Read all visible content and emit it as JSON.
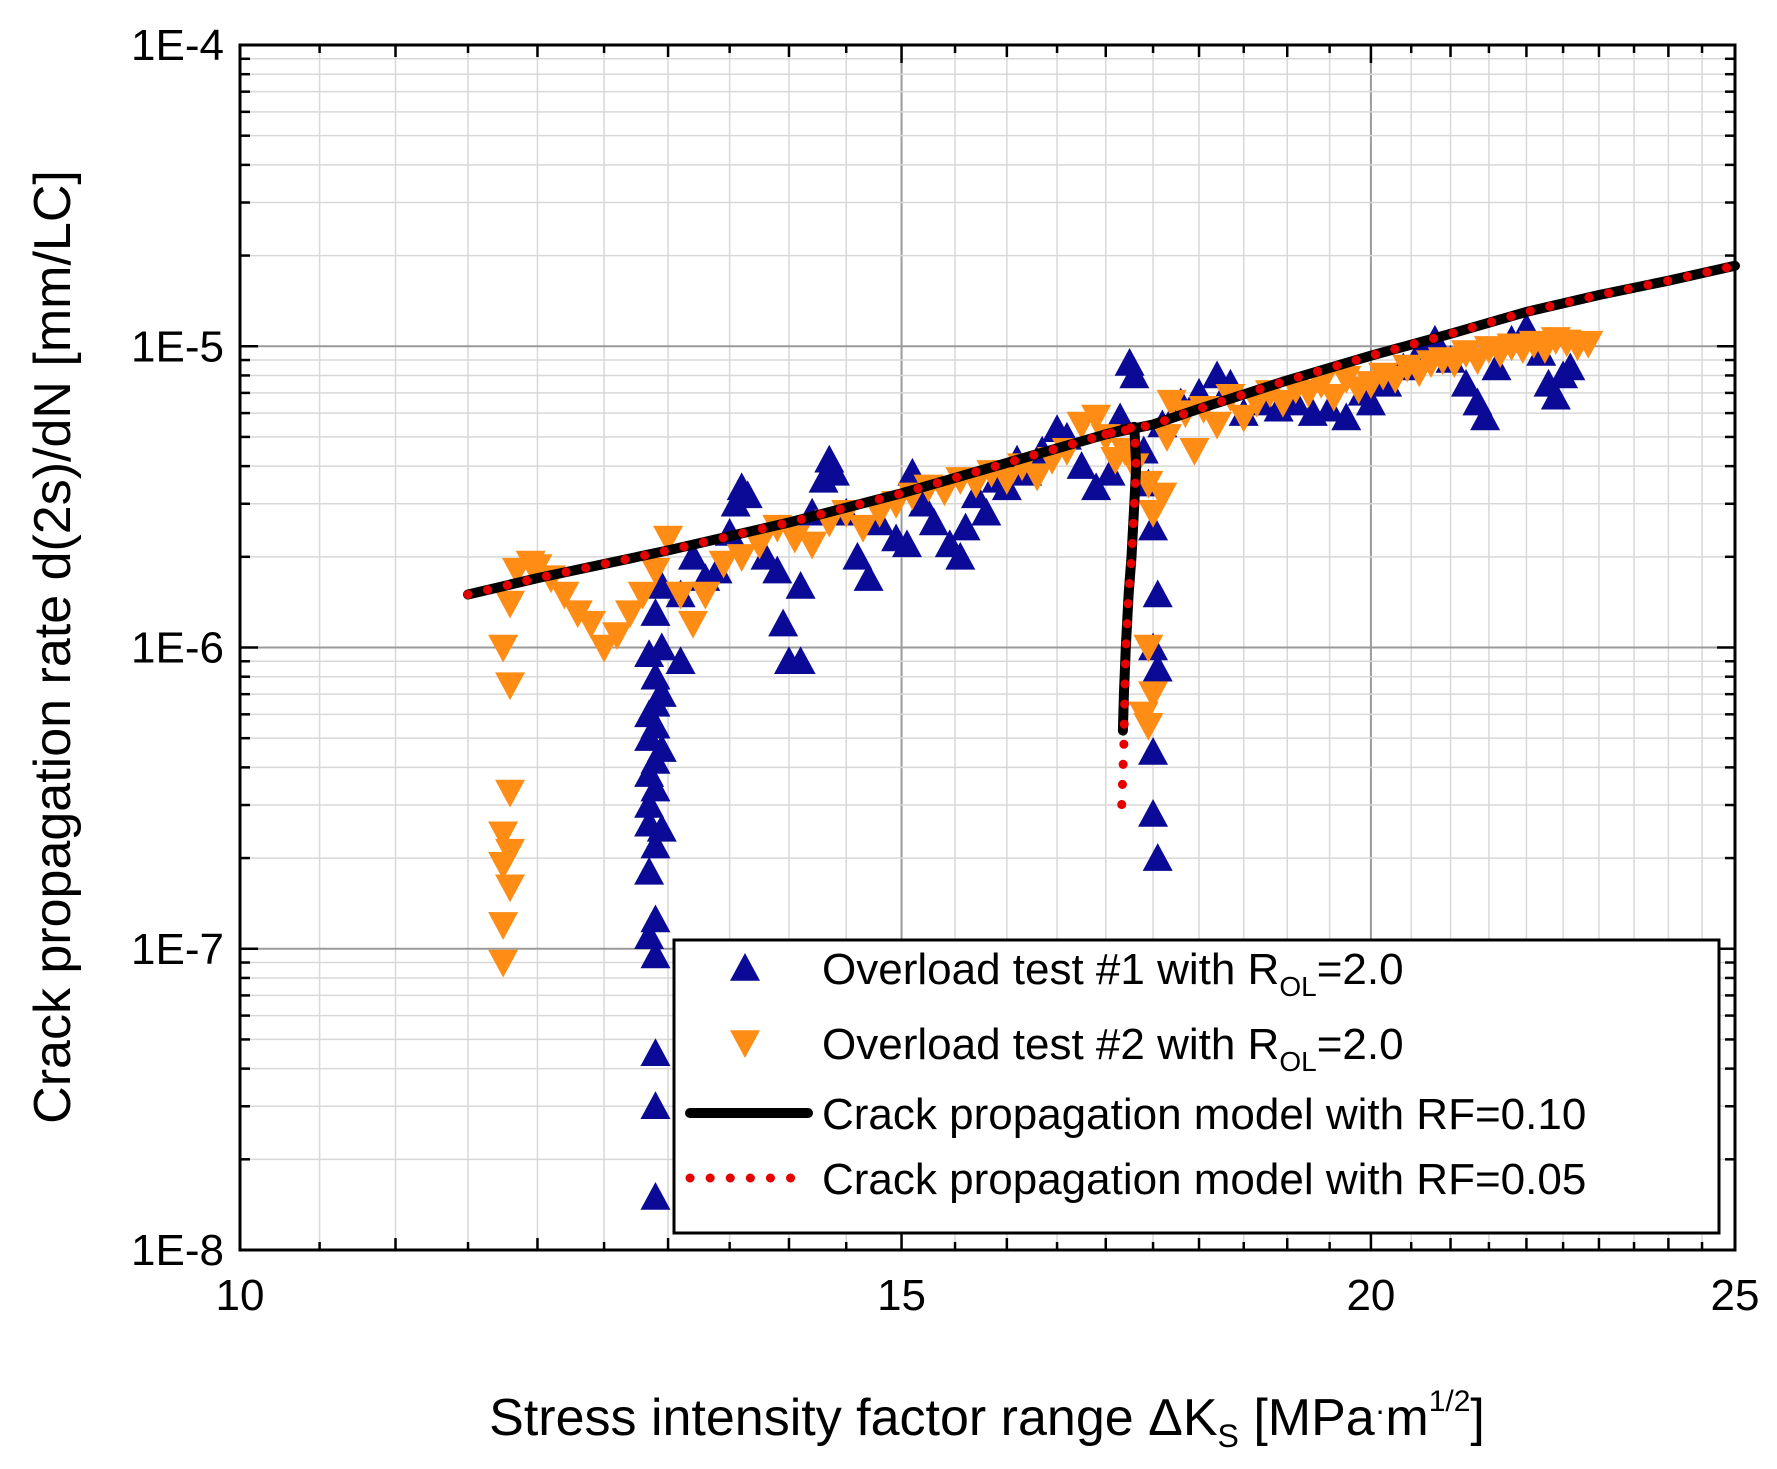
{
  "chart_data": {
    "type": "scatter",
    "x_scale": "log",
    "y_scale": "log",
    "xlabel": {
      "main": "Stress intensity factor range ΔK",
      "sub": "S",
      "unit_open": " [MPa",
      "dot": "·",
      "m": "m",
      "sup": "1/2",
      "close": "]"
    },
    "ylabel": "Crack propagation rate d(2s)/dN [mm/LC]",
    "xlim": [
      10,
      25
    ],
    "ylim": [
      1e-08,
      0.0001
    ],
    "x_ticks": [
      10,
      15,
      20,
      25
    ],
    "x_tick_labels": [
      "10",
      "15",
      "20",
      "25"
    ],
    "y_ticks": [
      1e-08,
      1e-07,
      1e-06,
      1e-05,
      0.0001
    ],
    "y_tick_labels": [
      "1E-8",
      "1E-7",
      "1E-6",
      "1E-5",
      "1E-4"
    ],
    "grid": true,
    "legend_position": "bottom-right",
    "legend": [
      {
        "key": "t1",
        "pre": "Overload test #1 with R",
        "sub": "OL",
        "post": "=2.0"
      },
      {
        "key": "t2",
        "pre": "Overload test #2 with R",
        "sub": "OL",
        "post": "=2.0"
      },
      {
        "key": "m1",
        "pre": "Crack propagation model with RF=0.10",
        "sub": "",
        "post": ""
      },
      {
        "key": "m2",
        "pre": "Crack propagation model with RF=0.05",
        "sub": "",
        "post": ""
      }
    ],
    "series": [
      {
        "key": "t1",
        "name": "Overload test #1 with R_OL=2.0",
        "marker": "triangle-up",
        "color": "#0a0a96",
        "points": [
          [
            12.9,
            1.5e-08
          ],
          [
            12.9,
            3e-08
          ],
          [
            12.9,
            4.5e-08
          ],
          [
            12.9,
            9.5e-08
          ],
          [
            12.85,
            1.1e-07
          ],
          [
            12.9,
            1.25e-07
          ],
          [
            12.85,
            1.8e-07
          ],
          [
            12.9,
            2.2e-07
          ],
          [
            12.85,
            2.6e-07
          ],
          [
            12.95,
            2.5e-07
          ],
          [
            12.85,
            3e-07
          ],
          [
            12.9,
            3.4e-07
          ],
          [
            12.85,
            3.8e-07
          ],
          [
            12.9,
            4.2e-07
          ],
          [
            12.95,
            4.6e-07
          ],
          [
            12.85,
            5e-07
          ],
          [
            12.9,
            5.5e-07
          ],
          [
            12.85,
            6e-07
          ],
          [
            12.9,
            6.5e-07
          ],
          [
            12.95,
            7e-07
          ],
          [
            12.9,
            8e-07
          ],
          [
            12.85,
            9.5e-07
          ],
          [
            12.95,
            1e-06
          ],
          [
            12.9,
            1.3e-06
          ],
          [
            12.95,
            1.6e-06
          ],
          [
            13.1,
            1.5e-06
          ],
          [
            13.2,
            2e-06
          ],
          [
            13.3,
            1.7e-06
          ],
          [
            13.1,
            9e-07
          ],
          [
            13.4,
            1.8e-06
          ],
          [
            13.5,
            2.4e-06
          ],
          [
            13.55,
            3e-06
          ],
          [
            13.6,
            3.4e-06
          ],
          [
            13.65,
            3.2e-06
          ],
          [
            13.8,
            2e-06
          ],
          [
            13.9,
            1.8e-06
          ],
          [
            13.95,
            1.2e-06
          ],
          [
            14.0,
            9e-07
          ],
          [
            14.1,
            9e-07
          ],
          [
            14.1,
            1.6e-06
          ],
          [
            14.2,
            2.8e-06
          ],
          [
            14.3,
            3.6e-06
          ],
          [
            14.35,
            4.2e-06
          ],
          [
            14.4,
            3.8e-06
          ],
          [
            14.5,
            2.8e-06
          ],
          [
            14.6,
            2e-06
          ],
          [
            14.7,
            1.7e-06
          ],
          [
            14.8,
            2.6e-06
          ],
          [
            14.95,
            2.3e-06
          ],
          [
            15.05,
            2.2e-06
          ],
          [
            15.1,
            3.8e-06
          ],
          [
            15.2,
            3e-06
          ],
          [
            15.3,
            2.6e-06
          ],
          [
            15.45,
            2.2e-06
          ],
          [
            15.55,
            2e-06
          ],
          [
            15.6,
            2.5e-06
          ],
          [
            15.7,
            3.2e-06
          ],
          [
            15.8,
            2.8e-06
          ],
          [
            15.9,
            3.6e-06
          ],
          [
            16.0,
            3.4e-06
          ],
          [
            16.1,
            4.2e-06
          ],
          [
            16.2,
            3.8e-06
          ],
          [
            16.35,
            4.5e-06
          ],
          [
            16.5,
            5.3e-06
          ],
          [
            16.6,
            5e-06
          ],
          [
            16.75,
            4e-06
          ],
          [
            16.9,
            3.4e-06
          ],
          [
            17.05,
            3.8e-06
          ],
          [
            17.15,
            5.8e-06
          ],
          [
            17.25,
            8.8e-06
          ],
          [
            17.3,
            8e-06
          ],
          [
            17.4,
            4.5e-06
          ],
          [
            17.45,
            3.5e-06
          ],
          [
            17.5,
            2.5e-06
          ],
          [
            17.55,
            1.5e-06
          ],
          [
            17.5,
            1e-06
          ],
          [
            17.55,
            8.5e-07
          ],
          [
            17.5,
            4.5e-07
          ],
          [
            17.5,
            2.8e-07
          ],
          [
            17.55,
            2e-07
          ],
          [
            17.6,
            5.5e-06
          ],
          [
            17.8,
            6.5e-06
          ],
          [
            18.0,
            7e-06
          ],
          [
            18.2,
            8e-06
          ],
          [
            18.35,
            7.5e-06
          ],
          [
            18.5,
            6e-06
          ],
          [
            18.7,
            6.5e-06
          ],
          [
            18.9,
            6.2e-06
          ],
          [
            19.1,
            6.5e-06
          ],
          [
            19.3,
            6e-06
          ],
          [
            19.5,
            6.2e-06
          ],
          [
            19.7,
            5.8e-06
          ],
          [
            19.9,
            7e-06
          ],
          [
            20.0,
            6.5e-06
          ],
          [
            20.2,
            7.5e-06
          ],
          [
            20.4,
            8.5e-06
          ],
          [
            20.6,
            9.5e-06
          ],
          [
            20.8,
            1.05e-05
          ],
          [
            21.0,
            9e-06
          ],
          [
            21.2,
            7.5e-06
          ],
          [
            21.35,
            6.5e-06
          ],
          [
            21.45,
            5.8e-06
          ],
          [
            21.6,
            8.5e-06
          ],
          [
            21.8,
            1.05e-05
          ],
          [
            22.0,
            1.15e-05
          ],
          [
            22.2,
            9.5e-06
          ],
          [
            22.3,
            7.5e-06
          ],
          [
            22.4,
            6.8e-06
          ],
          [
            22.5,
            8e-06
          ],
          [
            22.6,
            8.5e-06
          ]
        ]
      },
      {
        "key": "t2",
        "name": "Overload test #2 with R_OL=2.0",
        "marker": "triangle-down",
        "color": "#ff8c14",
        "points": [
          [
            11.75,
            9e-08
          ],
          [
            11.75,
            1.2e-07
          ],
          [
            11.8,
            1.6e-07
          ],
          [
            11.75,
            1.9e-07
          ],
          [
            11.8,
            2.1e-07
          ],
          [
            11.75,
            2.4e-07
          ],
          [
            11.8,
            3.3e-07
          ],
          [
            11.8,
            7.5e-07
          ],
          [
            11.75,
            1e-06
          ],
          [
            11.8,
            1.4e-06
          ],
          [
            11.85,
            1.8e-06
          ],
          [
            11.95,
            1.9e-06
          ],
          [
            12.0,
            1.85e-06
          ],
          [
            12.1,
            1.7e-06
          ],
          [
            12.2,
            1.5e-06
          ],
          [
            12.3,
            1.3e-06
          ],
          [
            12.4,
            1.2e-06
          ],
          [
            12.5,
            1e-06
          ],
          [
            12.6,
            1.1e-06
          ],
          [
            12.7,
            1.3e-06
          ],
          [
            12.8,
            1.5e-06
          ],
          [
            12.9,
            1.8e-06
          ],
          [
            13.0,
            2.3e-06
          ],
          [
            13.1,
            1.5e-06
          ],
          [
            13.2,
            1.2e-06
          ],
          [
            13.3,
            1.5e-06
          ],
          [
            13.45,
            1.9e-06
          ],
          [
            13.6,
            2e-06
          ],
          [
            13.75,
            2.2e-06
          ],
          [
            13.9,
            2.5e-06
          ],
          [
            14.05,
            2.3e-06
          ],
          [
            14.2,
            2.2e-06
          ],
          [
            14.35,
            2.6e-06
          ],
          [
            14.5,
            2.8e-06
          ],
          [
            14.65,
            2.5e-06
          ],
          [
            14.8,
            2.8e-06
          ],
          [
            14.95,
            3e-06
          ],
          [
            15.1,
            3.2e-06
          ],
          [
            15.25,
            3.4e-06
          ],
          [
            15.4,
            3.3e-06
          ],
          [
            15.55,
            3.6e-06
          ],
          [
            15.7,
            3.5e-06
          ],
          [
            15.85,
            3.8e-06
          ],
          [
            16.0,
            3.6e-06
          ],
          [
            16.15,
            4e-06
          ],
          [
            16.3,
            3.7e-06
          ],
          [
            16.45,
            4.2e-06
          ],
          [
            16.6,
            4.5e-06
          ],
          [
            16.75,
            5.5e-06
          ],
          [
            16.9,
            5.8e-06
          ],
          [
            17.0,
            5e-06
          ],
          [
            17.1,
            4.2e-06
          ],
          [
            17.2,
            4.5e-06
          ],
          [
            17.3,
            4e-06
          ],
          [
            17.45,
            3.5e-06
          ],
          [
            17.5,
            2.8e-06
          ],
          [
            17.45,
            1e-06
          ],
          [
            17.5,
            7e-07
          ],
          [
            17.45,
            5.5e-07
          ],
          [
            17.4,
            6e-07
          ],
          [
            17.6,
            3.2e-06
          ],
          [
            17.65,
            5e-06
          ],
          [
            17.7,
            6.5e-06
          ],
          [
            17.85,
            6e-06
          ],
          [
            17.95,
            4.5e-06
          ],
          [
            18.05,
            6.2e-06
          ],
          [
            18.2,
            5.5e-06
          ],
          [
            18.35,
            6.8e-06
          ],
          [
            18.5,
            5.8e-06
          ],
          [
            18.65,
            6.5e-06
          ],
          [
            18.8,
            7e-06
          ],
          [
            18.95,
            6.5e-06
          ],
          [
            19.1,
            7.2e-06
          ],
          [
            19.25,
            7e-06
          ],
          [
            19.4,
            7.5e-06
          ],
          [
            19.55,
            6.8e-06
          ],
          [
            19.7,
            7.8e-06
          ],
          [
            19.85,
            7.2e-06
          ],
          [
            20.0,
            7.5e-06
          ],
          [
            20.15,
            8e-06
          ],
          [
            20.3,
            7.8e-06
          ],
          [
            20.45,
            8.5e-06
          ],
          [
            20.6,
            8.2e-06
          ],
          [
            20.75,
            8.8e-06
          ],
          [
            20.9,
            9e-06
          ],
          [
            21.05,
            8.8e-06
          ],
          [
            21.2,
            9.5e-06
          ],
          [
            21.35,
            9e-06
          ],
          [
            21.5,
            9.8e-06
          ],
          [
            21.65,
            9.5e-06
          ],
          [
            21.8,
            1e-05
          ],
          [
            21.95,
            9.8e-06
          ],
          [
            22.1,
            1.02e-05
          ],
          [
            22.25,
            9.8e-06
          ],
          [
            22.4,
            1.05e-05
          ],
          [
            22.55,
            1.03e-05
          ],
          [
            22.7,
            1e-05
          ],
          [
            22.85,
            1.02e-05
          ]
        ]
      },
      {
        "key": "m1",
        "name": "Crack propagation model with RF=0.10",
        "style": "solid",
        "color": "#000000",
        "points": [
          [
            11.5,
            1.5e-06
          ],
          [
            12.0,
            1.7e-06
          ],
          [
            13.0,
            2.1e-06
          ],
          [
            14.0,
            2.6e-06
          ],
          [
            15.0,
            3.25e-06
          ],
          [
            16.0,
            4.1e-06
          ],
          [
            17.0,
            5.1e-06
          ],
          [
            17.3,
            5.4e-06
          ],
          [
            17.32,
            4e-06
          ],
          [
            17.3,
            3e-06
          ],
          [
            17.27,
            2e-06
          ],
          [
            17.24,
            1.5e-06
          ],
          [
            17.21,
            1e-06
          ],
          [
            17.19,
            7e-07
          ],
          [
            17.18,
            5.3e-07
          ],
          [
            17.5,
            5.5e-06
          ],
          [
            18.0,
            6.2e-06
          ],
          [
            19.0,
            7.7e-06
          ],
          [
            20.0,
            9.3e-06
          ],
          [
            21.0,
            1.1e-05
          ],
          [
            22.0,
            1.3e-05
          ],
          [
            23.0,
            1.48e-05
          ],
          [
            24.0,
            1.65e-05
          ],
          [
            25.0,
            1.85e-05
          ]
        ]
      },
      {
        "key": "m2",
        "name": "Crack propagation model with RF=0.05",
        "style": "dotted",
        "color": "#e60000",
        "points": [
          [
            11.5,
            1.5e-06
          ],
          [
            12.0,
            1.7e-06
          ],
          [
            13.0,
            2.1e-06
          ],
          [
            14.0,
            2.6e-06
          ],
          [
            15.0,
            3.25e-06
          ],
          [
            16.0,
            4.1e-06
          ],
          [
            17.0,
            5.1e-06
          ],
          [
            17.3,
            5.4e-06
          ],
          [
            17.32,
            4e-06
          ],
          [
            17.3,
            3e-06
          ],
          [
            17.27,
            2e-06
          ],
          [
            17.24,
            1.5e-06
          ],
          [
            17.21,
            1e-06
          ],
          [
            17.2,
            7e-07
          ],
          [
            17.19,
            4.8e-07
          ],
          [
            17.17,
            3.2e-07
          ],
          [
            17.16,
            2.6e-07
          ],
          [
            17.5,
            5.5e-06
          ],
          [
            18.0,
            6.2e-06
          ],
          [
            19.0,
            7.7e-06
          ],
          [
            20.0,
            9.3e-06
          ],
          [
            21.0,
            1.1e-05
          ],
          [
            22.0,
            1.3e-05
          ],
          [
            23.0,
            1.48e-05
          ],
          [
            24.0,
            1.65e-05
          ],
          [
            25.0,
            1.85e-05
          ]
        ]
      }
    ]
  }
}
